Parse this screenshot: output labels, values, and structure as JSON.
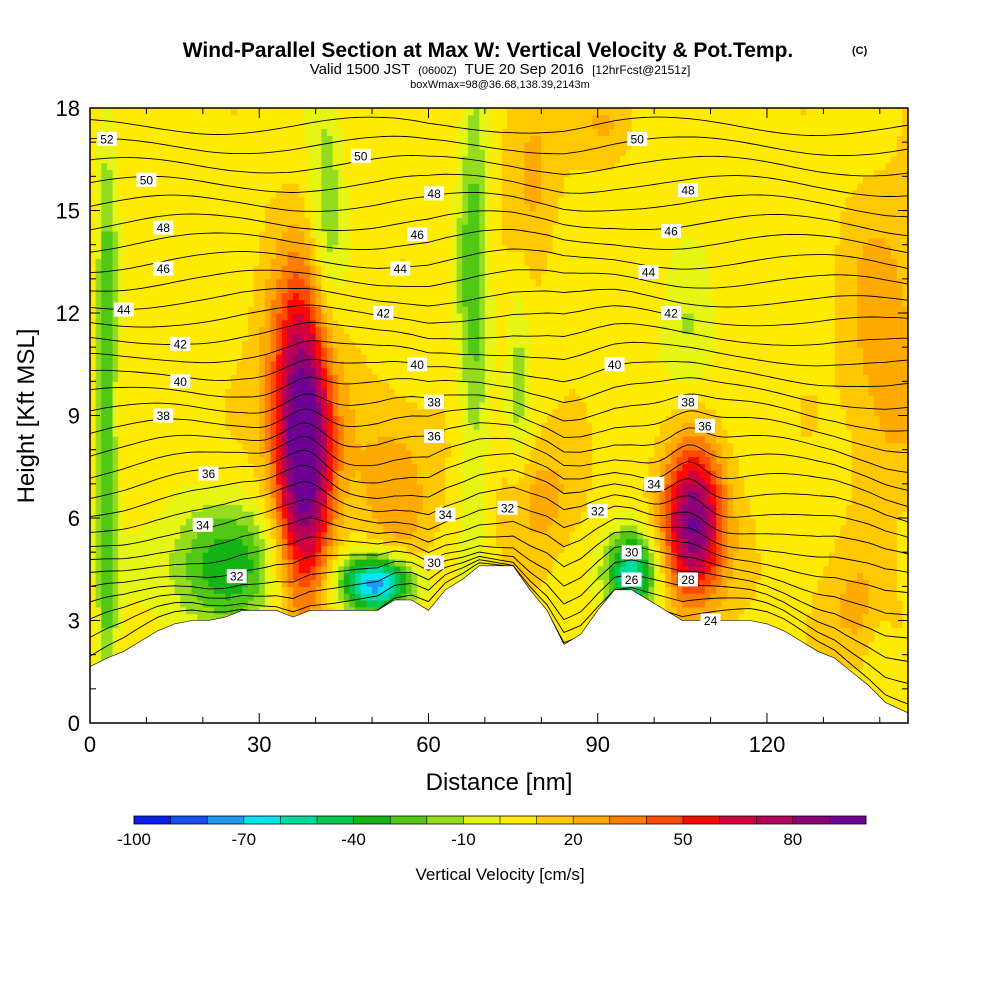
{
  "figure": {
    "title": "Wind-Parallel Section at Max W: Vertical Velocity & Pot.Temp.",
    "title_mark": "(C)",
    "subtitle_prefix": "Valid 1500 JST",
    "subtitle_zulu": "(0600Z)",
    "subtitle_date": "TUE 20 Sep 2016",
    "subtitle_fcst": "[12hrFcst@2151z]",
    "subtitle_box": "boxWmax=98@36.68,138.39,2143m"
  },
  "chart_data": {
    "type": "heatmap",
    "xlabel": "Distance [nm]",
    "ylabel": "Height [Kft MSL]",
    "xlim": [
      0,
      145
    ],
    "ylim": [
      0,
      18
    ],
    "x_ticks": [
      0,
      30,
      60,
      90,
      120
    ],
    "x_tick_labels": [
      "0",
      "30",
      "60",
      "90",
      "120"
    ],
    "y_ticks": [
      0,
      3,
      6,
      9,
      12,
      15,
      18
    ],
    "y_tick_labels": [
      "0",
      "3",
      "6",
      "9",
      "12",
      "15",
      "18"
    ],
    "colorbar": {
      "title": "Vertical Velocity [cm/s]",
      "levels": [
        -100,
        -90,
        -80,
        -70,
        -60,
        -50,
        -40,
        -30,
        -20,
        -10,
        0,
        10,
        20,
        30,
        40,
        50,
        60,
        70,
        80,
        90
      ],
      "colors": [
        "#0a1ef0",
        "#1450f0",
        "#1e9bf0",
        "#00e6f0",
        "#00dca0",
        "#00c850",
        "#14b414",
        "#50c814",
        "#96dc1e",
        "#e6f514",
        "#ffeb00",
        "#ffc800",
        "#ffaa00",
        "#ff7d00",
        "#ff4b00",
        "#ff0a00",
        "#d2003c",
        "#b4005a",
        "#8c0078",
        "#6e0096"
      ],
      "tick_values": [
        -100,
        -70,
        -40,
        -10,
        20,
        50,
        80
      ],
      "tick_labels": [
        "-100",
        "-70",
        "-40",
        "-10",
        "20",
        "50",
        "80"
      ]
    },
    "vertical_velocity_features": [
      {
        "x": 38,
        "y": 7.5,
        "w": 90,
        "sx": 3.5,
        "sy": 2.8
      },
      {
        "x": 107,
        "y": 5.8,
        "w": 88,
        "sx": 3.8,
        "sy": 1.6
      },
      {
        "x": 51,
        "y": 4.1,
        "w": -85,
        "sx": 4.5,
        "sy": 0.6
      },
      {
        "x": 96,
        "y": 4.4,
        "w": -70,
        "sx": 3.2,
        "sy": 0.9
      },
      {
        "x": 24,
        "y": 4.6,
        "w": -42,
        "sx": 8.0,
        "sy": 1.3
      },
      {
        "x": 3,
        "y": 8.5,
        "w": -38,
        "sx": 1.3,
        "sy": 6.5
      },
      {
        "x": 42,
        "y": 14.8,
        "w": -25,
        "sx": 2.2,
        "sy": 3.2
      },
      {
        "x": 68,
        "y": 13.2,
        "w": -32,
        "sx": 2.0,
        "sy": 4.8
      },
      {
        "x": 76,
        "y": 10.2,
        "w": -18,
        "sx": 1.5,
        "sy": 2.5
      },
      {
        "x": 106,
        "y": 11.2,
        "w": -16,
        "sx": 3.5,
        "sy": 1.6
      },
      {
        "x": 37,
        "y": 10.5,
        "w": 35,
        "sx": 4.5,
        "sy": 2.5
      },
      {
        "x": 54,
        "y": 7.0,
        "w": 22,
        "sx": 5.0,
        "sy": 1.8
      },
      {
        "x": 141,
        "y": 11.0,
        "w": 22,
        "sx": 5.0,
        "sy": 3.0
      },
      {
        "x": 92,
        "y": 17.5,
        "w": 16,
        "sx": 3.5,
        "sy": 0.8
      },
      {
        "x": 78,
        "y": 16.5,
        "w": 18,
        "sx": 3.5,
        "sy": 2.0
      },
      {
        "x": 80,
        "y": 6.6,
        "w": 18,
        "sx": 5.0,
        "sy": 1.3
      },
      {
        "x": 135,
        "y": 3.2,
        "w": 14,
        "sx": 6.0,
        "sy": 1.2
      },
      {
        "x": 140,
        "y": 2.2,
        "w": -12,
        "sx": 1.5,
        "sy": 0.8
      }
    ],
    "terrain": {
      "x": [
        0,
        3,
        6,
        9,
        12,
        15,
        18,
        21,
        24,
        27,
        30,
        33,
        36,
        39,
        42,
        45,
        48,
        51,
        54,
        57,
        60,
        63,
        66,
        69,
        72,
        75,
        78,
        81,
        84,
        87,
        90,
        93,
        96,
        99,
        102,
        105,
        108,
        111,
        114,
        117,
        120,
        123,
        126,
        129,
        132,
        135,
        138,
        141,
        145
      ],
      "height": [
        1.65,
        1.9,
        2.1,
        2.4,
        2.7,
        2.9,
        3.0,
        3.0,
        3.1,
        3.3,
        3.3,
        3.3,
        3.1,
        3.3,
        3.3,
        3.3,
        3.3,
        3.3,
        3.6,
        3.6,
        3.3,
        3.9,
        4.2,
        4.6,
        4.6,
        4.6,
        3.9,
        3.3,
        2.3,
        2.6,
        3.3,
        3.9,
        3.9,
        3.6,
        3.3,
        3.0,
        3.0,
        3.0,
        3.0,
        3.0,
        2.9,
        2.7,
        2.4,
        2.1,
        1.9,
        1.5,
        1.1,
        0.6,
        0.3
      ]
    },
    "theta_contours": {
      "levels": [
        24,
        26,
        28,
        30,
        32,
        34,
        36,
        38,
        40,
        42,
        44,
        46,
        48,
        50,
        52
      ],
      "labels": [
        {
          "text": "52",
          "x": 3,
          "y": 17.1
        },
        {
          "text": "50",
          "x": 10,
          "y": 15.9
        },
        {
          "text": "48",
          "x": 13,
          "y": 14.5
        },
        {
          "text": "46",
          "x": 13,
          "y": 13.3
        },
        {
          "text": "44",
          "x": 6,
          "y": 12.1
        },
        {
          "text": "42",
          "x": 16,
          "y": 11.1
        },
        {
          "text": "40",
          "x": 16,
          "y": 10.0
        },
        {
          "text": "38",
          "x": 13,
          "y": 9.0
        },
        {
          "text": "36",
          "x": 21,
          "y": 7.3
        },
        {
          "text": "34",
          "x": 20,
          "y": 5.8
        },
        {
          "text": "32",
          "x": 26,
          "y": 4.3
        },
        {
          "text": "50",
          "x": 48,
          "y": 16.6
        },
        {
          "text": "48",
          "x": 61,
          "y": 15.5
        },
        {
          "text": "46",
          "x": 58,
          "y": 14.3
        },
        {
          "text": "44",
          "x": 55,
          "y": 13.3
        },
        {
          "text": "42",
          "x": 52,
          "y": 12.0
        },
        {
          "text": "40",
          "x": 58,
          "y": 10.5
        },
        {
          "text": "38",
          "x": 61,
          "y": 9.4
        },
        {
          "text": "36",
          "x": 61,
          "y": 8.4
        },
        {
          "text": "34",
          "x": 63,
          "y": 6.1
        },
        {
          "text": "32",
          "x": 74,
          "y": 6.3
        },
        {
          "text": "30",
          "x": 61,
          "y": 4.7
        },
        {
          "text": "32",
          "x": 90,
          "y": 6.2
        },
        {
          "text": "30",
          "x": 96,
          "y": 5.0
        },
        {
          "text": "26",
          "x": 96,
          "y": 4.2
        },
        {
          "text": "28",
          "x": 106,
          "y": 4.2
        },
        {
          "text": "24",
          "x": 110,
          "y": 3.0
        },
        {
          "text": "34",
          "x": 100,
          "y": 7.0
        },
        {
          "text": "36",
          "x": 109,
          "y": 8.7
        },
        {
          "text": "38",
          "x": 106,
          "y": 9.4
        },
        {
          "text": "40",
          "x": 93,
          "y": 10.5
        },
        {
          "text": "42",
          "x": 103,
          "y": 12.0
        },
        {
          "text": "44",
          "x": 99,
          "y": 13.2
        },
        {
          "text": "46",
          "x": 103,
          "y": 14.4
        },
        {
          "text": "48",
          "x": 106,
          "y": 15.6
        },
        {
          "text": "50",
          "x": 97,
          "y": 17.1
        }
      ]
    }
  }
}
